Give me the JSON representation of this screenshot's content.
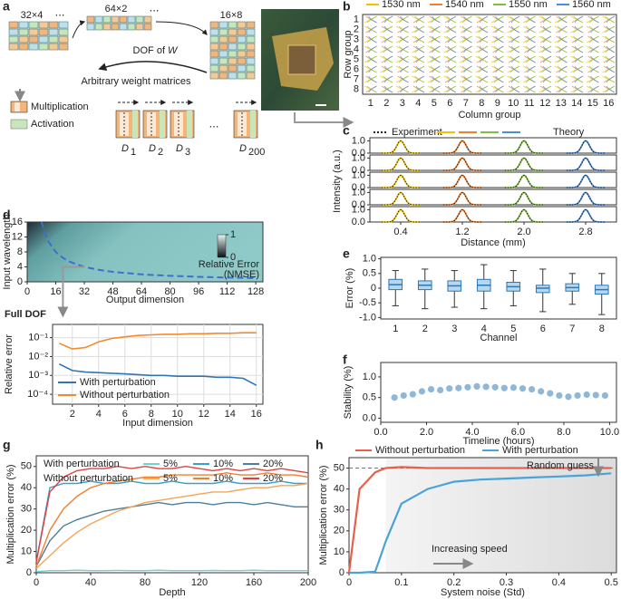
{
  "panel_labels": [
    "a",
    "b",
    "c",
    "d",
    "e",
    "f",
    "g",
    "h"
  ],
  "diagram": {
    "matrices": [
      "32×4",
      "64×2",
      "16×8"
    ],
    "ellipsis": "⋯",
    "dof": "DOF of",
    "dof_var": "W",
    "caption": "Arbitrary weight matrices",
    "legend": [
      "Multiplication",
      "Activation"
    ],
    "depths": [
      {
        "base": "D",
        "sub": "1"
      },
      {
        "base": "D",
        "sub": "2"
      },
      {
        "base": "D",
        "sub": "3"
      },
      {
        "base": "D",
        "sub": "200"
      }
    ]
  },
  "chart_data": [
    {
      "type": "grid",
      "xlabel": "Column group",
      "ylabel": "Row group",
      "series": [
        {
          "name": "1530 nm",
          "color": "#f2c200"
        },
        {
          "name": "1540 nm",
          "color": "#f07f2e"
        },
        {
          "name": "1550 nm",
          "color": "#7fbf3f"
        },
        {
          "name": "1560 nm",
          "color": "#4a8fd6"
        }
      ],
      "rows": [
        1,
        2,
        3,
        4,
        5,
        6,
        7,
        8
      ],
      "columns": [
        1,
        2,
        3,
        4,
        5,
        6,
        7,
        8,
        9,
        10,
        11,
        12,
        13,
        14,
        15,
        16
      ]
    },
    {
      "type": "spectra",
      "xlabel": "Distance (mm)",
      "ylabel": "Intensity (a.u.)",
      "series": [
        {
          "name": "Experiment",
          "color": "#222222"
        },
        {
          "name": "Theory",
          "colors": [
            "#f2c200",
            "#f07f2e",
            "#7fbf3f",
            "#4a8fd6"
          ]
        }
      ],
      "xlim": [
        0,
        3.2
      ],
      "xticks": [
        {
          "value": 0.4,
          "label": "0.4"
        },
        {
          "value": 1.2,
          "label": "1.2"
        },
        {
          "value": 2,
          "label": "2.0"
        },
        {
          "value": 2.8,
          "label": "2.8"
        }
      ],
      "ylim": [
        0,
        1.25
      ],
      "yticks": [
        {
          "value": 0,
          "label": "0.0"
        },
        {
          "value": 1,
          "label": "1.0"
        }
      ],
      "peak_positions": [
        0.4,
        1.2,
        2.0,
        2.8
      ],
      "peak_heights": [
        [
          1,
          1,
          1,
          1
        ],
        [
          1,
          1,
          1,
          1
        ],
        [
          1,
          1,
          1,
          1
        ],
        [
          1,
          1,
          1,
          1
        ],
        [
          1,
          1,
          1,
          1
        ]
      ]
    },
    {
      "type": "heatmap",
      "xlabel": "Output dimension",
      "ylabel": "Input wavelength",
      "xlim": [
        0,
        132
      ],
      "xticks": [
        0,
        16,
        32,
        48,
        64,
        80,
        96,
        112,
        128
      ],
      "ylim": [
        0,
        16
      ],
      "yticks": [
        0,
        4,
        8,
        12,
        16
      ],
      "colorbar": {
        "label": [
          "Relative Error",
          "(NMSE)"
        ],
        "lim": [
          0,
          1
        ],
        "ticks": [
          0,
          1
        ]
      },
      "boundary": {
        "x": [
          8,
          10,
          12,
          16,
          20,
          24,
          32,
          40,
          48,
          64,
          80,
          96,
          112,
          128
        ],
        "y": [
          16,
          12.8,
          10.67,
          8,
          6.4,
          5.33,
          4,
          3.2,
          2.67,
          2,
          1.6,
          1.33,
          1.14,
          1
        ]
      }
    },
    {
      "type": "line",
      "title": "Full DOF",
      "xlabel": "Input dimension",
      "ylabel": "Relative error",
      "ylog": true,
      "grid": true,
      "xlim": [
        0.5,
        16.5
      ],
      "xticks": [
        2,
        4,
        6,
        8,
        10,
        12,
        14,
        16
      ],
      "ylim": [
        3e-05,
        0.5
      ],
      "yticks": [
        {
          "value": 0.0001,
          "label": "10⁻⁴"
        },
        {
          "value": 0.001,
          "label": "10⁻³"
        },
        {
          "value": 0.01,
          "label": "10⁻²"
        },
        {
          "value": 0.1,
          "label": "10⁻¹"
        }
      ],
      "x": [
        1,
        2,
        3,
        4,
        5,
        6,
        7,
        8,
        9,
        10,
        11,
        12,
        13,
        14,
        15,
        16
      ],
      "series": [
        {
          "name": "With perturbation",
          "color": "#2f76b6",
          "values": [
            0.004,
            0.0018,
            0.0015,
            0.0014,
            0.0013,
            0.0012,
            0.0011,
            0.001,
            0.001,
            0.0009,
            0.0009,
            0.0009,
            0.0008,
            0.0008,
            0.0007,
            0.0003
          ]
        },
        {
          "name": "Without perturbation",
          "color": "#f28a2e",
          "values": [
            0.05,
            0.025,
            0.03,
            0.06,
            0.09,
            0.11,
            0.13,
            0.14,
            0.15,
            0.15,
            0.16,
            0.16,
            0.17,
            0.17,
            0.18,
            0.18
          ]
        }
      ]
    },
    {
      "type": "box",
      "xlabel": "Channel",
      "ylabel": "Error (%)",
      "color": "#b5d8ef",
      "ylim": [
        -1.05,
        1.05
      ],
      "yticks": [
        {
          "value": -1,
          "label": "-1.0"
        },
        -0.5,
        0,
        0.5,
        {
          "value": 1,
          "label": "1.0"
        }
      ],
      "categories": [
        1,
        2,
        3,
        4,
        5,
        6,
        7,
        8
      ],
      "boxes": [
        {
          "min": -0.6,
          "q1": -0.05,
          "median": 0.12,
          "q3": 0.3,
          "max": 0.6
        },
        {
          "min": -0.7,
          "q1": -0.05,
          "median": 0.1,
          "q3": 0.25,
          "max": 0.65
        },
        {
          "min": -0.65,
          "q1": -0.1,
          "median": 0.08,
          "q3": 0.25,
          "max": 0.6
        },
        {
          "min": -0.7,
          "q1": -0.1,
          "median": 0.1,
          "q3": 0.3,
          "max": 0.8
        },
        {
          "min": -0.6,
          "q1": -0.1,
          "median": 0.05,
          "q3": 0.2,
          "max": 0.6
        },
        {
          "min": -0.8,
          "q1": -0.15,
          "median": 0,
          "q3": 0.1,
          "max": 0.65
        },
        {
          "min": -0.55,
          "q1": -0.1,
          "median": 0.02,
          "q3": 0.15,
          "max": 0.5
        },
        {
          "min": -0.9,
          "q1": -0.2,
          "median": -0.05,
          "q3": 0.1,
          "max": 0.5
        }
      ]
    },
    {
      "type": "scatter",
      "xlabel": "Timeline (hours)",
      "ylabel": "Stability (%)",
      "color": "#8fb8d8",
      "xlim": [
        0,
        10.3
      ],
      "xticks": [
        {
          "value": 0,
          "label": "0.0"
        },
        {
          "value": 2,
          "label": "2.0"
        },
        {
          "value": 4,
          "label": "4.0"
        },
        {
          "value": 6,
          "label": "6.0"
        },
        {
          "value": 8,
          "label": "8.0"
        },
        {
          "value": 10,
          "label": "10.0"
        }
      ],
      "ylim": [
        -0.1,
        1.35
      ],
      "yticks": [
        {
          "value": 0,
          "label": "0.0"
        },
        0.5,
        {
          "value": 1,
          "label": "1.0"
        }
      ],
      "x": [
        0.6,
        1.0,
        1.4,
        1.8,
        2.2,
        2.6,
        3.0,
        3.4,
        3.8,
        4.2,
        4.6,
        5.0,
        5.4,
        5.8,
        6.2,
        6.6,
        7.0,
        7.4,
        7.8,
        8.2,
        8.6,
        9.0,
        9.4,
        9.8
      ],
      "values": [
        0.5,
        0.55,
        0.58,
        0.65,
        0.7,
        0.68,
        0.72,
        0.73,
        0.75,
        0.77,
        0.76,
        0.75,
        0.73,
        0.74,
        0.72,
        0.7,
        0.65,
        0.6,
        0.55,
        0.52,
        0.55,
        0.57,
        0.56,
        0.55
      ]
    },
    {
      "type": "line",
      "xlabel": "Depth",
      "ylabel": "Multiplication error (%)",
      "xlim": [
        0,
        200
      ],
      "xticks": [
        0,
        40,
        80,
        120,
        160,
        200
      ],
      "ylim": [
        0,
        55
      ],
      "yticks": [
        0,
        10,
        20,
        30,
        40,
        50
      ],
      "x": [
        0,
        10,
        20,
        30,
        40,
        50,
        60,
        70,
        80,
        90,
        100,
        110,
        120,
        130,
        140,
        150,
        160,
        170,
        180,
        190,
        200
      ],
      "groups": [
        {
          "name": "With perturbation",
          "series": [
            {
              "name": "5%",
              "color": "#6fd3d3",
              "values": [
                0.5,
                1,
                1,
                1.2,
                1,
                1,
                1.1,
                1,
                1,
                1.2,
                1,
                1,
                1,
                1.1,
                1,
                1,
                1.2,
                1,
                1,
                1,
                1
              ]
            },
            {
              "name": "10%",
              "color": "#3aa0c8",
              "values": [
                5,
                40,
                42,
                42,
                43,
                42,
                42,
                43,
                42,
                42,
                43,
                42,
                42,
                42,
                43,
                42,
                42,
                42,
                43,
                42,
                42
              ]
            },
            {
              "name": "20%",
              "color": "#4a7f9f",
              "values": [
                3,
                15,
                22,
                25,
                27,
                29,
                30,
                31,
                32,
                33,
                32,
                33,
                33,
                32,
                33,
                33,
                32,
                33,
                32,
                31,
                31
              ]
            }
          ]
        },
        {
          "name": "Without perturbation",
          "series": [
            {
              "name": "5%",
              "color": "#f2a65a",
              "values": [
                2,
                8,
                14,
                19,
                23,
                26,
                29,
                31,
                33,
                34,
                35,
                36,
                37,
                38,
                38,
                39,
                40,
                40,
                41,
                41,
                42
              ]
            },
            {
              "name": "10%",
              "color": "#f08030",
              "values": [
                3,
                20,
                30,
                36,
                40,
                42,
                43,
                44,
                45,
                45,
                46,
                46,
                46,
                46,
                47,
                46,
                46,
                47,
                46,
                46,
                45
              ]
            },
            {
              "name": "20%",
              "color": "#e04040",
              "values": [
                5,
                38,
                45,
                48,
                49,
                49,
                50,
                49,
                50,
                49,
                49,
                50,
                49,
                48,
                49,
                48,
                49,
                48,
                49,
                48,
                47
              ]
            }
          ]
        }
      ]
    },
    {
      "type": "line",
      "xlabel": "System noise (Std)",
      "ylabel": "Multiplication error (%)",
      "xlim": [
        0,
        0.51
      ],
      "xticks": [
        0,
        0.1,
        0.2,
        0.3,
        0.4,
        0.5
      ],
      "ylim": [
        0,
        55
      ],
      "yticks": [
        0,
        10,
        20,
        30,
        40,
        50
      ],
      "reference_line": 50,
      "annotations": [
        "Random guess",
        "Increasing speed"
      ],
      "x": [
        0,
        0.02,
        0.05,
        0.07,
        0.1,
        0.15,
        0.2,
        0.25,
        0.3,
        0.35,
        0.4,
        0.45,
        0.5
      ],
      "series": [
        {
          "name": "Without perturbation",
          "color": "#e8604c",
          "values": [
            0,
            40,
            48,
            50,
            50.5,
            50,
            50,
            50,
            50,
            50,
            50,
            50,
            50
          ]
        },
        {
          "name": "With perturbation",
          "color": "#4aa3d6",
          "values": [
            0,
            0,
            0.5,
            15,
            33,
            40,
            43.5,
            44.5,
            45,
            45.5,
            46,
            46.5,
            47.5
          ]
        }
      ]
    }
  ]
}
